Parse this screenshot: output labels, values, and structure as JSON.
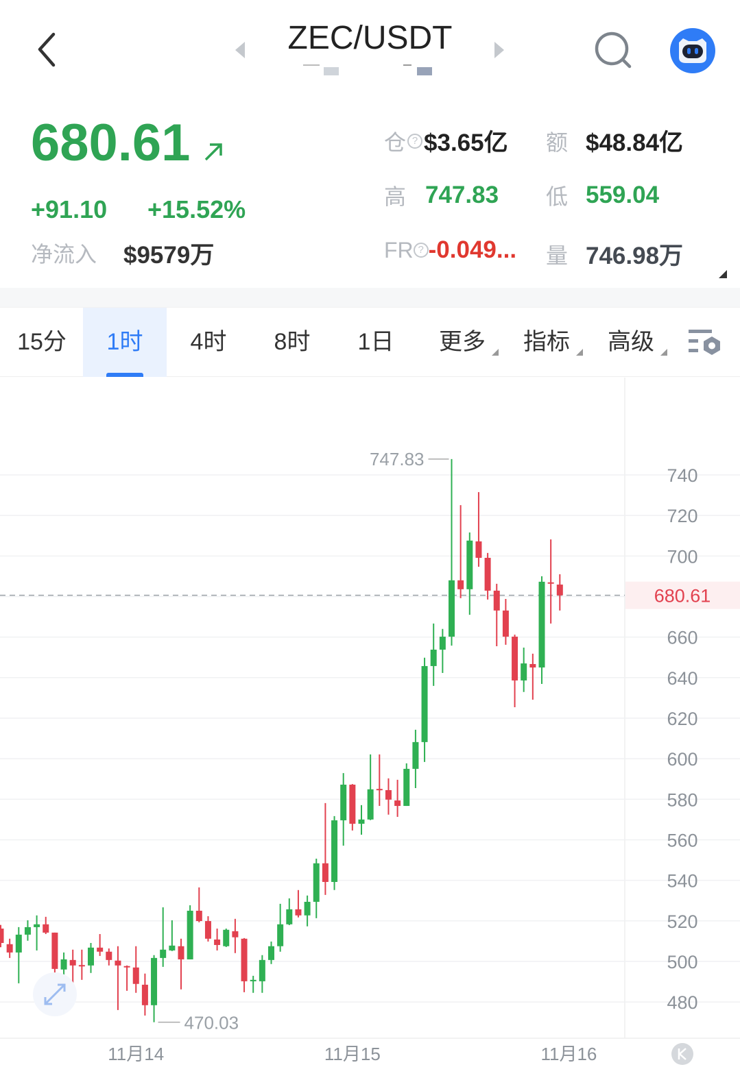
{
  "header": {
    "title": "ZEC/USDT",
    "back_icon": "chevron-left-icon",
    "prev_icon": "triangle-left-icon",
    "next_icon": "triangle-right-icon",
    "search_icon": "search-icon",
    "assistant_icon": "robot-avatar-icon"
  },
  "ticker": {
    "last_price": "680.61",
    "trend_icon": "arrow-up-right-icon",
    "change": "+91.10",
    "change_pct": "+15.52%",
    "net_inflow_label": "净流入",
    "net_inflow": "$9579万",
    "stats": [
      {
        "label": "仓",
        "help": "?",
        "value": "$3.65亿",
        "color": "#222222"
      },
      {
        "label": "额",
        "value": "$48.84亿",
        "color": "#222222"
      },
      {
        "label": "高",
        "value": "747.83",
        "color": "#2fa454"
      },
      {
        "label": "低",
        "value": "559.04",
        "color": "#2fa454"
      },
      {
        "label": "FR",
        "help": "?",
        "value": "-0.049...",
        "color": "#e0382f"
      },
      {
        "label": "量",
        "value": "746.98万",
        "color": "#444a52"
      }
    ]
  },
  "tabs": [
    {
      "label": "15分",
      "active": false
    },
    {
      "label": "1时",
      "active": true
    },
    {
      "label": "4时",
      "active": false
    },
    {
      "label": "8时",
      "active": false
    },
    {
      "label": "1日",
      "active": false
    },
    {
      "label": "更多",
      "dropdown": true
    },
    {
      "label": "指标",
      "dropdown": true
    },
    {
      "label": "高级",
      "dropdown": true
    }
  ],
  "chart_settings_icon": "chart-settings-icon",
  "colors": {
    "up": "#2fb053",
    "down": "#e2414f",
    "accent": "#2f7cf6",
    "price_line": "#e2414f"
  },
  "chart_data": {
    "type": "candlestick",
    "ylim": [
      465,
      755
    ],
    "y_ticks": [
      "740",
      "720",
      "700",
      "680",
      "660",
      "640",
      "620",
      "600",
      "580",
      "560",
      "540",
      "520",
      "500",
      "480"
    ],
    "y_tick_values": [
      740,
      720,
      700,
      680,
      660,
      640,
      620,
      600,
      580,
      560,
      540,
      520,
      500,
      480
    ],
    "current_price": "680.61",
    "max_label": "747.83",
    "min_label": "470.03",
    "x_ticks": [
      {
        "label": "11月14",
        "candle": 15
      },
      {
        "label": "11月15",
        "candle": 39
      },
      {
        "label": "11月16",
        "candle": 63
      }
    ],
    "grid": true,
    "candles": [
      [
        516.2,
        518,
        507,
        509.1
      ],
      [
        508.5,
        511.2,
        501.7,
        504.4
      ],
      [
        504.4,
        516.9,
        489.2,
        513.2
      ],
      [
        513.2,
        520.3,
        510.2,
        516.9
      ],
      [
        516.9,
        522.7,
        505.4,
        518.3
      ],
      [
        518.3,
        522,
        513.5,
        514.2
      ],
      [
        514.2,
        514.2,
        490.9,
        496.3
      ],
      [
        496,
        504.4,
        492.6,
        501
      ],
      [
        500.7,
        505.8,
        489.2,
        498
      ],
      [
        498.2,
        505.8,
        490.9,
        498
      ],
      [
        498,
        509.1,
        494.3,
        506.8
      ],
      [
        506.8,
        513.5,
        502.7,
        504.8
      ],
      [
        504.8,
        506.4,
        498,
        500.7
      ],
      [
        500.4,
        507.5,
        476,
        498
      ],
      [
        497.7,
        498,
        485.5,
        497.3
      ],
      [
        497,
        507.5,
        484.5,
        488.9
      ],
      [
        488.5,
        494,
        473.3,
        478.4
      ],
      [
        478.4,
        503.1,
        470.03,
        501.7
      ],
      [
        501.7,
        526.7,
        497.3,
        505.8
      ],
      [
        505.4,
        520.3,
        505.1,
        507.8
      ],
      [
        507.5,
        511.2,
        486.2,
        501
      ],
      [
        501,
        527.7,
        501,
        525
      ],
      [
        525,
        536.5,
        519.3,
        519.9
      ],
      [
        519.9,
        522.3,
        509.8,
        511.2
      ],
      [
        510.8,
        516.2,
        505.4,
        508.1
      ],
      [
        507.5,
        516.2,
        507.1,
        515.6
      ],
      [
        514.9,
        521,
        504.1,
        511.9
      ],
      [
        511.2,
        511.5,
        484.8,
        490.2
      ],
      [
        490.2,
        492.9,
        484.5,
        490.9
      ],
      [
        490.2,
        503.1,
        484.5,
        500.7
      ],
      [
        500.7,
        509.8,
        498.7,
        507.5
      ],
      [
        507.5,
        528.4,
        504.8,
        518.3
      ],
      [
        518.3,
        531.1,
        517.9,
        525.7
      ],
      [
        525.7,
        535.2,
        521.7,
        522.7
      ],
      [
        522.7,
        532.5,
        517.3,
        529.4
      ],
      [
        529.4,
        550.7,
        521.3,
        548.4
      ],
      [
        548.4,
        578.1,
        532.8,
        539.2
      ],
      [
        539.2,
        571.7,
        535.2,
        569.6
      ],
      [
        569.6,
        592.9,
        557.1,
        587.2
      ],
      [
        587.2,
        587.5,
        564.6,
        567.9
      ],
      [
        567.9,
        577.1,
        562.5,
        570
      ],
      [
        570,
        602.1,
        569.7,
        584.9
      ],
      [
        585.1,
        602.1,
        576.7,
        584.7
      ],
      [
        584.5,
        590.3,
        572.4,
        579.8
      ],
      [
        579.4,
        589.6,
        571.3,
        576.7
      ],
      [
        576.7,
        597.7,
        576.7,
        595
      ],
      [
        595,
        614.3,
        585.5,
        608.2
      ],
      [
        608.2,
        649.8,
        598.4,
        645.7
      ],
      [
        645.7,
        666.7,
        635.9,
        653.8
      ],
      [
        653.8,
        664,
        642.3,
        660.2
      ],
      [
        660.2,
        747.83,
        655.8,
        688
      ],
      [
        688,
        725.1,
        679.2,
        683.6
      ],
      [
        683.6,
        711.6,
        671,
        707.6
      ],
      [
        707.2,
        731.5,
        694.7,
        699.1
      ],
      [
        699.1,
        701.5,
        678.5,
        682.9
      ],
      [
        682.9,
        686.3,
        655.5,
        673.1
      ],
      [
        673.1,
        678.8,
        656.2,
        660.2
      ],
      [
        660.2,
        661.2,
        625.4,
        638.6
      ],
      [
        638.6,
        654.8,
        632.9,
        647
      ],
      [
        646.7,
        651.8,
        629.1,
        645
      ],
      [
        645,
        690,
        636.9,
        687.3
      ],
      [
        687,
        708.2,
        666.7,
        686.6
      ],
      [
        685.9,
        691,
        673.1,
        680.61
      ]
    ]
  },
  "expand_icon": "expand-arrows-icon",
  "logo_badge_icon": "k-badge-icon"
}
